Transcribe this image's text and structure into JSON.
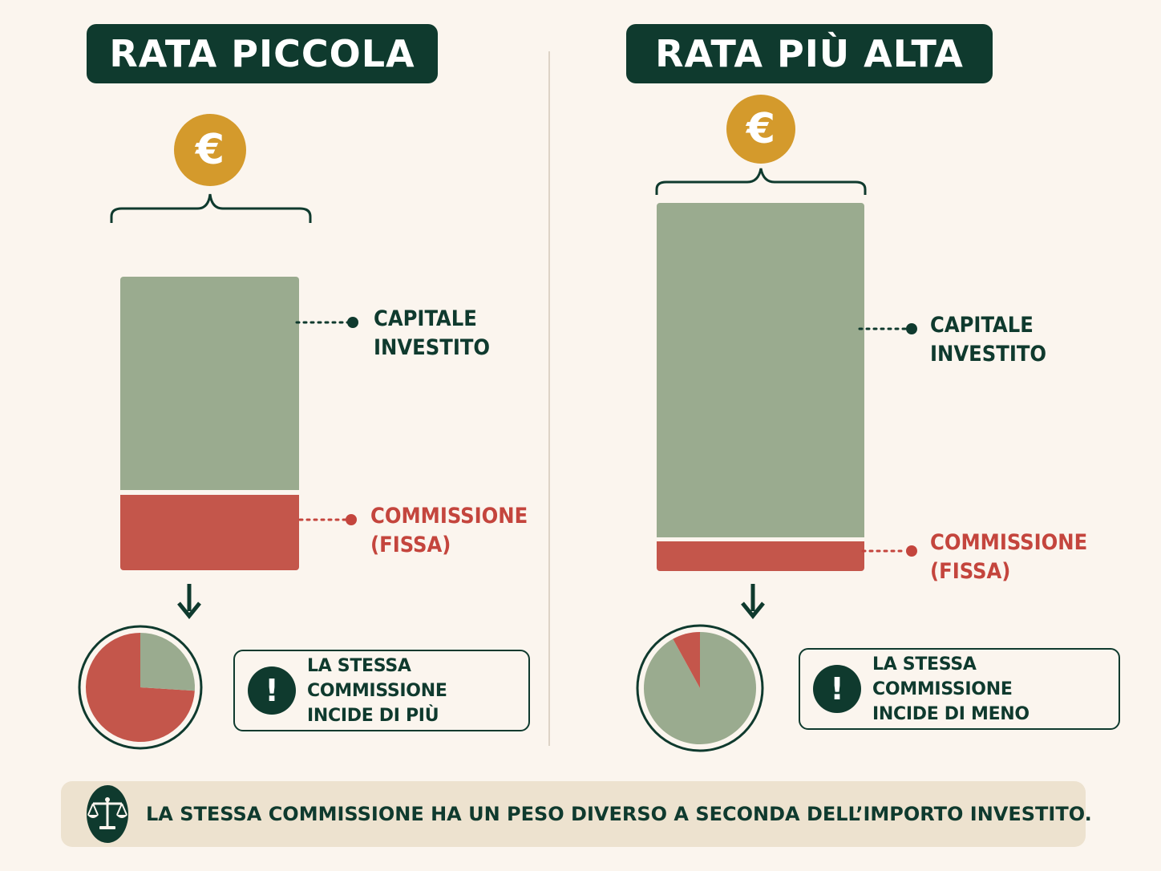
{
  "left": {
    "title": "RATA PICCOLA",
    "coin_symbol": "€",
    "capital_label": [
      "CAPITALE",
      "INVESTITO"
    ],
    "commission_label": [
      "COMMISSIONE",
      "(FISSA)"
    ],
    "note": [
      "LA STESSA COMMISSIONE",
      "INCIDE DI PIÙ"
    ],
    "note_icon": "!",
    "commission_share": 0.26
  },
  "right": {
    "title": "RATA PIÙ ALTA",
    "coin_symbol": "€",
    "capital_label": [
      "CAPITALE",
      "INVESTITO"
    ],
    "commission_label": [
      "COMMISSIONE",
      "(FISSA)"
    ],
    "note": [
      "LA STESSA COMMISSIONE",
      "INCIDE DI MENO"
    ],
    "note_icon": "!",
    "commission_share": 0.08
  },
  "footer": {
    "text": "LA STESSA COMMISSIONE HA UN PESO DIVERSO A SECONDA DELL’IMPORTO INVESTITO.",
    "icon": "scale-icon"
  },
  "colors": {
    "dark_green": "#0f3a2e",
    "sage": "#9aab8f",
    "red": "#c4564b",
    "gold": "#d49a2c",
    "background": "#fbf5ee"
  },
  "icons": [
    "euro-coin-icon",
    "bracket-icon",
    "arrow-down-icon",
    "pie-chart-icon",
    "exclamation-icon",
    "scale-icon"
  ]
}
